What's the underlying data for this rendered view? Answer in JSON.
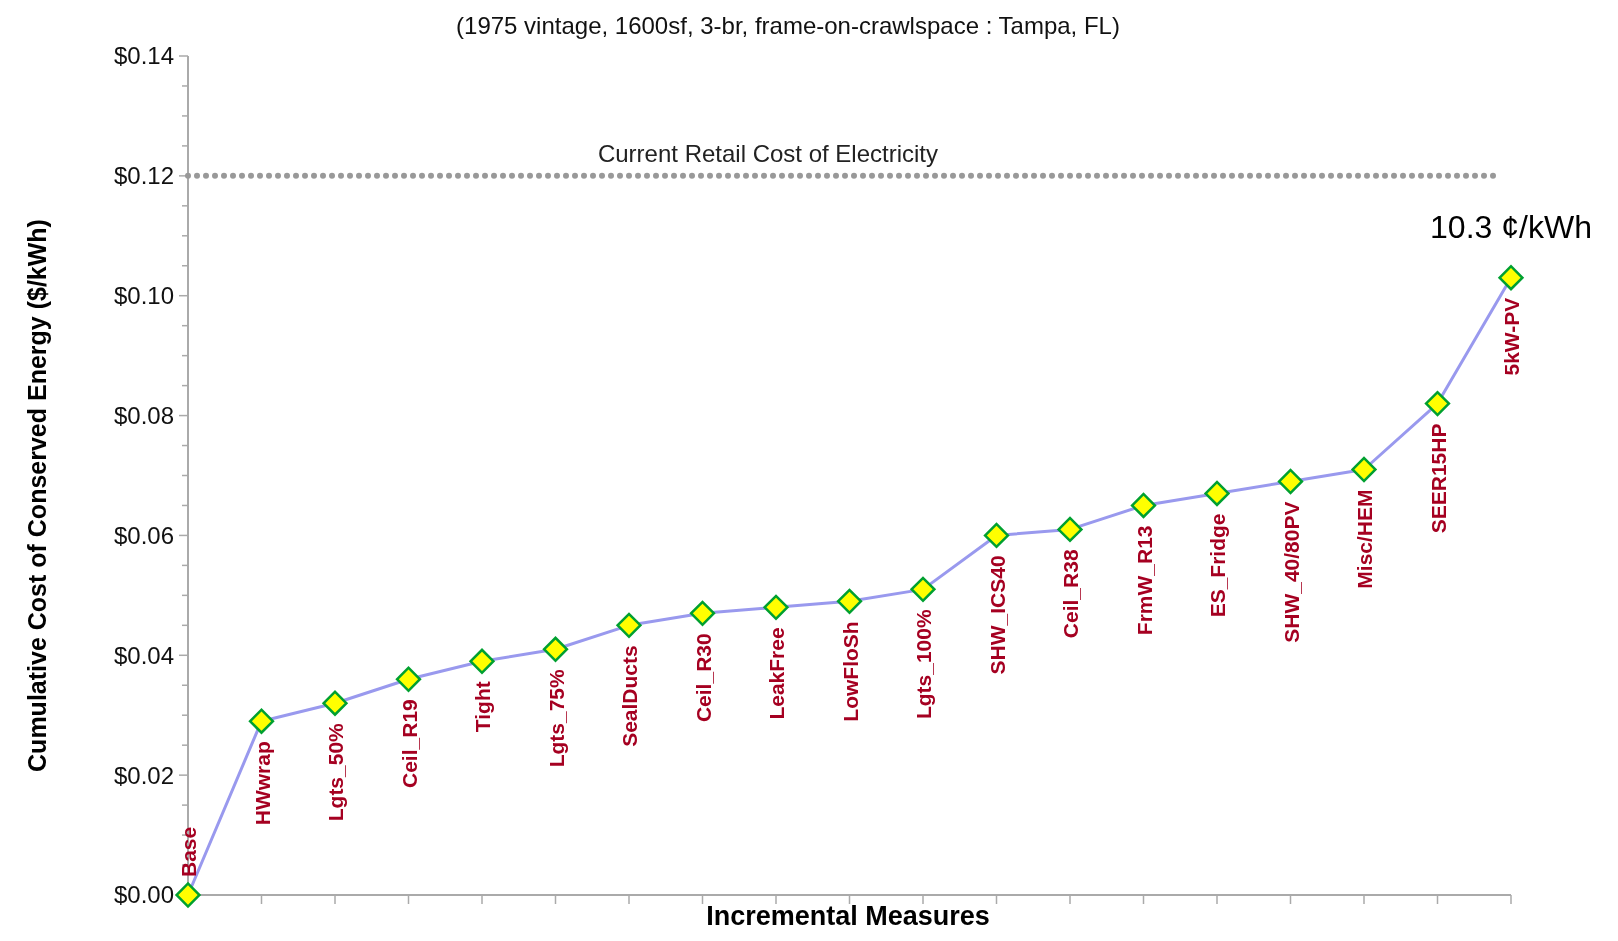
{
  "chart_data": {
    "type": "line",
    "subtitle": "(1975 vintage, 1600sf, 3-br, frame-on-crawlspace : Tampa, FL)",
    "xlabel": "Incremental Measures",
    "ylabel": "Cumulative Cost of Conserved Energy ($/kWh)",
    "categories": [
      "Base",
      "HWwrap",
      "Lgts_50%",
      "Ceil_R19",
      "Tight",
      "Lgts_75%",
      "SealDucts",
      "Ceil_R30",
      "LeakFree",
      "LowFloSh",
      "Lgts_100%",
      "SHW_ICS40",
      "Ceil_R38",
      "FrmW_R13",
      "ES_Fridge",
      "SHW_40/80PV",
      "Misc/HEM",
      "SEER15HP",
      "5kW-PV"
    ],
    "series": [
      {
        "color": "#9999ee",
        "values": [
          0,
          0.029,
          0.032,
          0.036,
          0.039,
          0.041,
          0.045,
          0.047,
          0.048,
          0.049,
          0.051,
          0.06,
          0.061,
          0.065,
          0.067,
          0.069,
          0.071,
          0.082,
          0.103
        ]
      }
    ],
    "marker": "diamond",
    "line_style": "solid",
    "grid": false,
    "ylim": [
      0,
      0.14
    ],
    "yticks": [
      {
        "value": 0,
        "label": "$0.00"
      },
      {
        "value": 0.005,
        "label": null
      },
      {
        "value": 0.01,
        "label": null
      },
      {
        "value": 0.015,
        "label": null
      },
      {
        "value": 0.02,
        "label": "$0.02"
      },
      {
        "value": 0.025,
        "label": null
      },
      {
        "value": 0.03,
        "label": null
      },
      {
        "value": 0.035,
        "label": null
      },
      {
        "value": 0.04,
        "label": "$0.04"
      },
      {
        "value": 0.045,
        "label": null
      },
      {
        "value": 0.05,
        "label": null
      },
      {
        "value": 0.055,
        "label": null
      },
      {
        "value": 0.06,
        "label": "$0.06"
      },
      {
        "value": 0.065,
        "label": null
      },
      {
        "value": 0.07,
        "label": null
      },
      {
        "value": 0.075,
        "label": null
      },
      {
        "value": 0.08,
        "label": "$0.08"
      },
      {
        "value": 0.085,
        "label": null
      },
      {
        "value": 0.09,
        "label": null
      },
      {
        "value": 0.095,
        "label": null
      },
      {
        "value": 0.1,
        "label": "$0.10"
      },
      {
        "value": 0.105,
        "label": null
      },
      {
        "value": 0.11,
        "label": null
      },
      {
        "value": 0.115,
        "label": null
      },
      {
        "value": 0.12,
        "label": "$0.12"
      },
      {
        "value": 0.125,
        "label": null
      },
      {
        "value": 0.13,
        "label": null
      },
      {
        "value": 0.135,
        "label": null
      },
      {
        "value": 0.14,
        "label": "$0.14"
      }
    ],
    "ref_lines": [
      {
        "axis": "y",
        "value": 0.12,
        "label": "Current Retail Cost of Electricity",
        "color": "#999999",
        "line_style": "dotted"
      }
    ],
    "annotations": [
      {
        "text": "10.3 ¢/kWh",
        "x": "5kW-PV",
        "y": 0.103
      }
    ]
  }
}
